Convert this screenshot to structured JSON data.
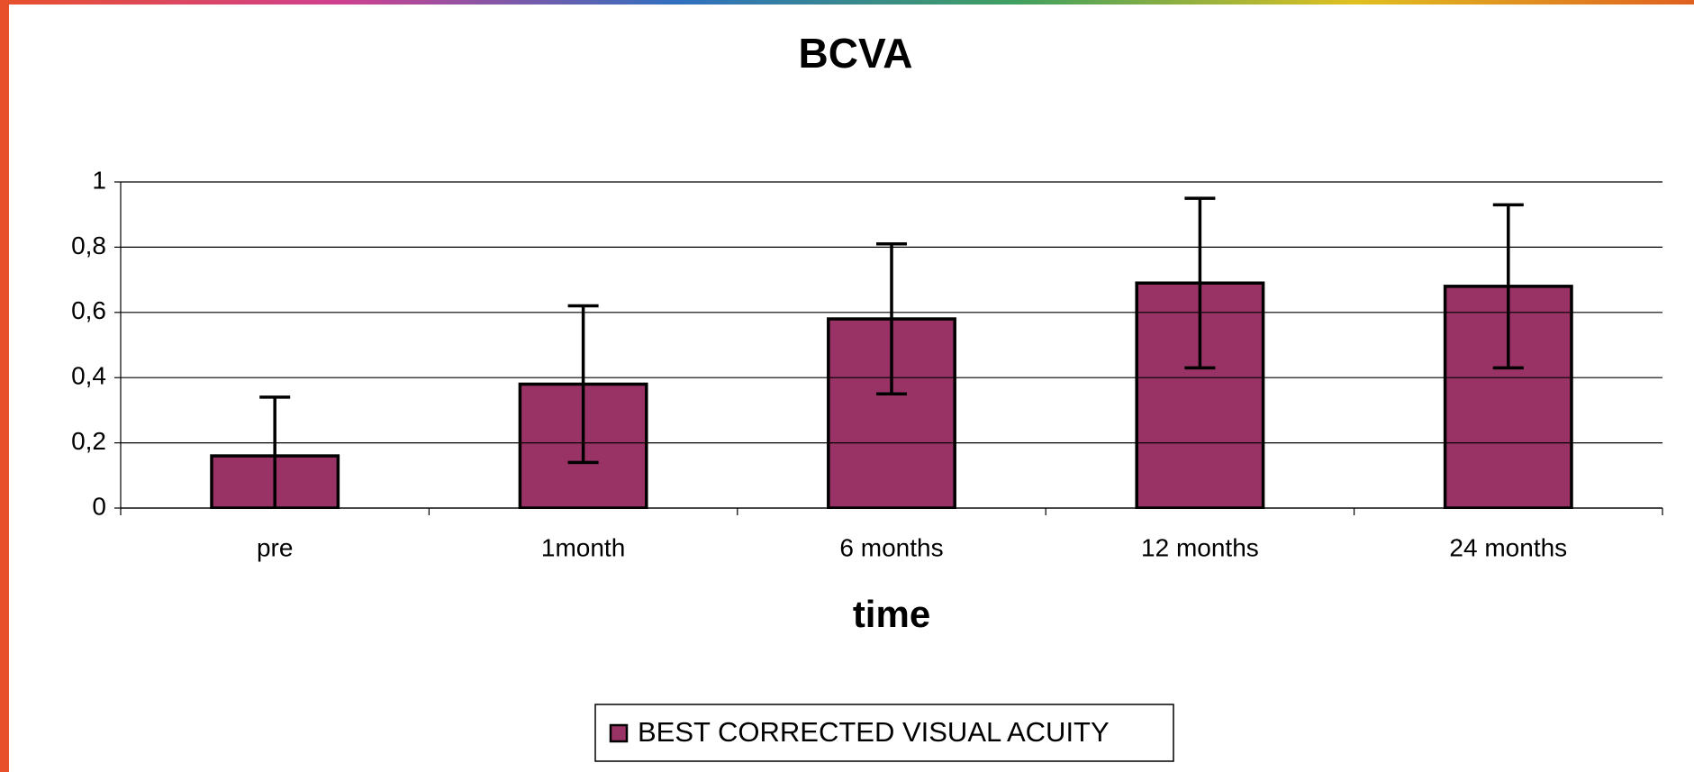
{
  "chart_data": {
    "type": "bar",
    "title": "BCVA",
    "x_label": "time",
    "categories": [
      "pre",
      "1month",
      "6 months",
      "12 months",
      "24 months"
    ],
    "series": [
      {
        "name": "BEST CORRECTED VISUAL ACUITY",
        "color": "#993366",
        "values": [
          0.16,
          0.38,
          0.58,
          0.69,
          0.68
        ],
        "errors": [
          0.18,
          0.24,
          0.23,
          0.26,
          0.25
        ]
      }
    ],
    "ylim": [
      0,
      1
    ],
    "yticks": [
      0,
      {
        "value": 0.2,
        "label": "0,2"
      },
      {
        "value": 0.4,
        "label": "0,4"
      },
      {
        "value": 0.6,
        "label": "0,6"
      },
      {
        "value": 0.8,
        "label": "0,8"
      },
      1
    ],
    "grid": true,
    "legend": "bottom"
  }
}
